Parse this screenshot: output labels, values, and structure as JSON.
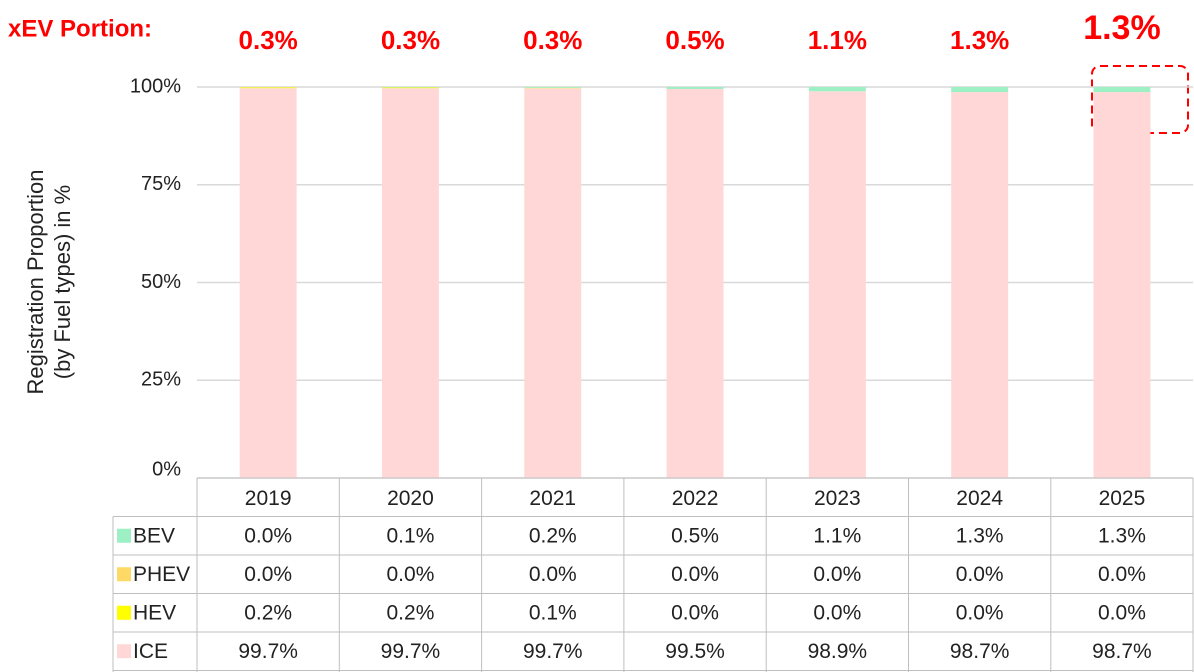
{
  "chart_data": {
    "type": "stacked_bar",
    "y_label": [
      "Registration Proportion",
      "(by Fuel types) in %"
    ],
    "categories": [
      "2019",
      "2020",
      "2021",
      "2022",
      "2023",
      "2024",
      "2025"
    ],
    "series": [
      {
        "name": "BEV",
        "color": "#9cf0c3",
        "values": [
          0.0,
          0.1,
          0.2,
          0.5,
          1.1,
          1.3,
          1.3
        ],
        "value_labels": [
          "0.0%",
          "0.1%",
          "0.2%",
          "0.5%",
          "1.1%",
          "1.3%",
          "1.3%"
        ]
      },
      {
        "name": "PHEV",
        "color": "#ffd966",
        "values": [
          0.0,
          0.0,
          0.0,
          0.0,
          0.0,
          0.0,
          0.0
        ],
        "value_labels": [
          "0.0%",
          "0.0%",
          "0.0%",
          "0.0%",
          "0.0%",
          "0.0%",
          "0.0%"
        ]
      },
      {
        "name": "HEV",
        "color": "#ffff00",
        "values": [
          0.2,
          0.2,
          0.1,
          0.0,
          0.0,
          0.0,
          0.0
        ],
        "value_labels": [
          "0.2%",
          "0.2%",
          "0.1%",
          "0.0%",
          "0.0%",
          "0.0%",
          "0.0%"
        ]
      },
      {
        "name": "ICE",
        "color": "#ffd7d7",
        "values": [
          99.7,
          99.7,
          99.7,
          99.5,
          98.9,
          98.7,
          98.7
        ],
        "value_labels": [
          "99.7%",
          "99.7%",
          "99.7%",
          "99.5%",
          "98.9%",
          "98.7%",
          "98.7%"
        ]
      }
    ],
    "ylim": [
      0,
      100
    ],
    "yticks": [
      {
        "value": 0,
        "label": "0%"
      },
      {
        "value": 25,
        "label": "25%"
      },
      {
        "value": 50,
        "label": "50%"
      },
      {
        "value": 75,
        "label": "75%"
      },
      {
        "value": 100,
        "label": "100%"
      }
    ],
    "grid": true,
    "xev_portion": {
      "title": "xEV Portion:",
      "labels": [
        "0.3%",
        "0.3%",
        "0.3%",
        "0.5%",
        "1.1%",
        "1.3%",
        "1.3%"
      ]
    }
  }
}
